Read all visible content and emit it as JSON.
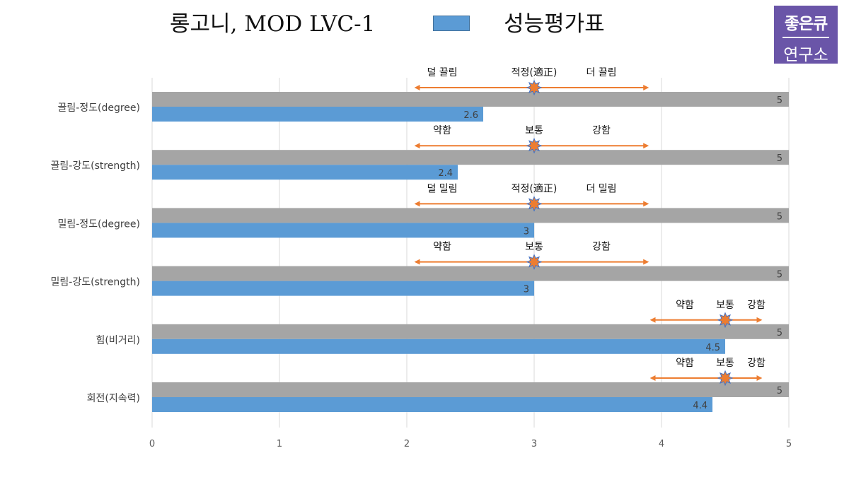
{
  "header": {
    "title": "롱고니, MOD LVC-1",
    "legend_label": "성능평가표",
    "legend_color": "#5b9bd5",
    "logo_line1": "좋은큐",
    "logo_line2": "연구소"
  },
  "chart_data": {
    "type": "bar",
    "orientation": "horizontal",
    "categories": [
      "끌림-정도(degree)",
      "끌림-강도(strength)",
      "밀림-정도(degree)",
      "밀림-강도(strength)",
      "힘(비거리)",
      "회전(지속력)"
    ],
    "series": [
      {
        "color": "#a5a5a5",
        "values": [
          5,
          5,
          5,
          5,
          5,
          5
        ]
      },
      {
        "color": "#5b9bd5",
        "values": [
          2.6,
          2.4,
          3,
          3,
          4.5,
          4.4
        ]
      }
    ],
    "xlim": [
      0,
      5
    ],
    "x_ticks": [
      "0",
      "1",
      "2",
      "3",
      "4",
      "5"
    ],
    "grid": "vertical",
    "annotations": [
      {
        "row": 0,
        "from": 2.07,
        "to": 3.89,
        "mark": 3,
        "left": "덜 끌림",
        "center": "적정(適正)",
        "right": "더 끌림"
      },
      {
        "row": 1,
        "from": 2.07,
        "to": 3.89,
        "mark": 3,
        "left": "약함",
        "center": "보통",
        "right": "강함"
      },
      {
        "row": 2,
        "from": 2.07,
        "to": 3.89,
        "mark": 3,
        "left": "덜 밀림",
        "center": "적정(適正)",
        "right": "더 밀림"
      },
      {
        "row": 3,
        "from": 2.07,
        "to": 3.89,
        "mark": 3,
        "left": "약함",
        "center": "보통",
        "right": "강함"
      },
      {
        "row": 4,
        "from": 3.92,
        "to": 4.78,
        "mark": 4.5,
        "left": "약함",
        "center": "보통",
        "right": "강함"
      },
      {
        "row": 5,
        "from": 3.92,
        "to": 4.78,
        "mark": 4.5,
        "left": "약함",
        "center": "보통",
        "right": "강함"
      }
    ],
    "annotation_color": "#ed7d31"
  }
}
